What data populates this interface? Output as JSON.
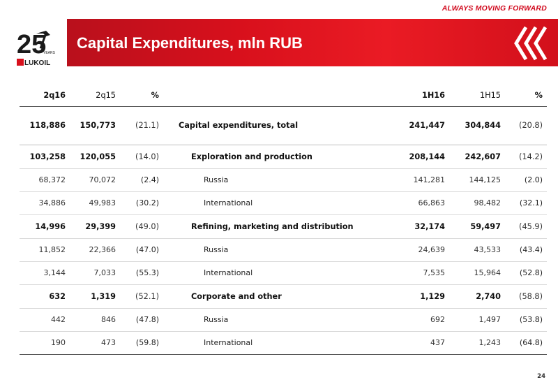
{
  "header": {
    "tagline": "ALWAYS MOVING FORWARD",
    "title": "Capital Expenditures, mln RUB",
    "logo_years_text": "25",
    "logo_years_word": "YEARS",
    "logo_brand": "LUKOIL",
    "accent_color": "#d8101c"
  },
  "table": {
    "headers": {
      "q_current": "2q16",
      "q_prior": "2q15",
      "q_pct": "%",
      "h_current": "1H16",
      "h_prior": "1H15",
      "h_pct": "%"
    },
    "rows": [
      {
        "kind": "total",
        "label": "Capital expenditures, total",
        "q_current": "118,886",
        "q_prior": "150,773",
        "q_pct": "(21.1)",
        "h_current": "241,447",
        "h_prior": "304,844",
        "h_pct": "(20.8)"
      },
      {
        "kind": "seg",
        "label": "Exploration and production",
        "q_current": "103,258",
        "q_prior": "120,055",
        "q_pct": "(14.0)",
        "h_current": "208,144",
        "h_prior": "242,607",
        "h_pct": "(14.2)"
      },
      {
        "kind": "sub",
        "label": "Russia",
        "q_current": "68,372",
        "q_prior": "70,072",
        "q_pct": "(2.4)",
        "h_current": "141,281",
        "h_prior": "144,125",
        "h_pct": "(2.0)"
      },
      {
        "kind": "sub",
        "label": "International",
        "q_current": "34,886",
        "q_prior": "49,983",
        "q_pct": "(30.2)",
        "h_current": "66,863",
        "h_prior": "98,482",
        "h_pct": "(32.1)"
      },
      {
        "kind": "seg",
        "label": "Refining, marketing and distribution",
        "q_current": "14,996",
        "q_prior": "29,399",
        "q_pct": "(49.0)",
        "h_current": "32,174",
        "h_prior": "59,497",
        "h_pct": "(45.9)"
      },
      {
        "kind": "sub",
        "label": "Russia",
        "q_current": "11,852",
        "q_prior": "22,366",
        "q_pct": "(47.0)",
        "h_current": "24,639",
        "h_prior": "43,533",
        "h_pct": "(43.4)"
      },
      {
        "kind": "sub",
        "label": "International",
        "q_current": "3,144",
        "q_prior": "7,033",
        "q_pct": "(55.3)",
        "h_current": "7,535",
        "h_prior": "15,964",
        "h_pct": "(52.8)"
      },
      {
        "kind": "seg",
        "label": "Corporate and other",
        "q_current": "632",
        "q_prior": "1,319",
        "q_pct": "(52.1)",
        "h_current": "1,129",
        "h_prior": "2,740",
        "h_pct": "(58.8)"
      },
      {
        "kind": "sub",
        "label": "Russia",
        "q_current": "442",
        "q_prior": "846",
        "q_pct": "(47.8)",
        "h_current": "692",
        "h_prior": "1,497",
        "h_pct": "(53.8)"
      },
      {
        "kind": "sub",
        "label": "International",
        "q_current": "190",
        "q_prior": "473",
        "q_pct": "(59.8)",
        "h_current": "437",
        "h_prior": "1,243",
        "h_pct": "(64.8)"
      }
    ]
  },
  "footer": {
    "page_number": "24"
  }
}
